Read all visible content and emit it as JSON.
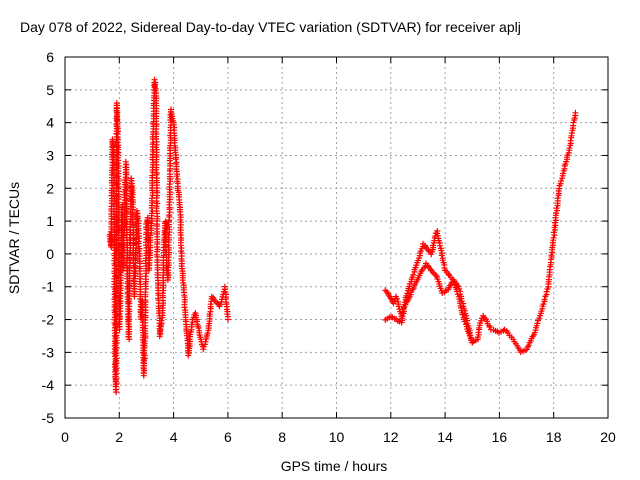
{
  "chart_data": {
    "type": "scatter",
    "title": "Day 078 of 2022, Sidereal Day-to-day VTEC variation (SDTVAR) for receiver aplj",
    "xlabel": "GPS time / hours",
    "ylabel": "SDTVAR / TECUs",
    "xlim": [
      0,
      20
    ],
    "ylim": [
      -5,
      6
    ],
    "xticks": [
      "0",
      "2",
      "4",
      "6",
      "8",
      "10",
      "12",
      "14",
      "16",
      "18",
      "20"
    ],
    "yticks": [
      "-5",
      "-4",
      "-3",
      "-2",
      "-1",
      "0",
      "1",
      "2",
      "3",
      "4",
      "5",
      "6"
    ],
    "grid": true,
    "marker": "+",
    "series": [
      {
        "name": "SDTVAR",
        "color": "#ff0000",
        "segments": [
          [
            [
              1.65,
              0.6
            ],
            [
              1.7,
              0.2
            ],
            [
              1.75,
              3.5
            ],
            [
              1.8,
              3.1
            ],
            [
              1.85,
              -3.6
            ],
            [
              1.88,
              -4.2
            ],
            [
              1.9,
              4.6
            ],
            [
              1.95,
              3.8
            ],
            [
              2.0,
              -2.3
            ],
            [
              2.05,
              -1.2
            ],
            [
              2.1,
              1.5
            ],
            [
              2.15,
              -0.5
            ],
            [
              2.2,
              1.8
            ],
            [
              2.25,
              2.8
            ],
            [
              2.3,
              -1.0
            ],
            [
              2.35,
              -2.6
            ],
            [
              2.4,
              0.5
            ],
            [
              2.45,
              2.3
            ],
            [
              2.5,
              1.5
            ],
            [
              2.55,
              -1.3
            ],
            [
              2.6,
              -0.2
            ],
            [
              2.65,
              1.3
            ],
            [
              2.7,
              1.0
            ],
            [
              2.75,
              -0.3
            ],
            [
              2.8,
              -2.0
            ],
            [
              2.85,
              -1.4
            ],
            [
              2.9,
              -3.7
            ],
            [
              2.95,
              -2.5
            ],
            [
              3.0,
              0.9
            ],
            [
              3.05,
              1.1
            ],
            [
              3.1,
              -0.5
            ],
            [
              3.15,
              0.5
            ],
            [
              3.2,
              1.0
            ],
            [
              3.25,
              3.8
            ],
            [
              3.3,
              5.3
            ],
            [
              3.35,
              4.9
            ],
            [
              3.4,
              -0.1
            ],
            [
              3.45,
              -1.5
            ],
            [
              3.5,
              -2.5
            ],
            [
              3.55,
              -2.1
            ],
            [
              3.6,
              -1.8
            ],
            [
              3.65,
              0.5
            ],
            [
              3.7,
              1.0
            ],
            [
              3.75,
              -0.5
            ],
            [
              3.8,
              -0.8
            ],
            [
              3.85,
              1.5
            ],
            [
              3.9,
              4.4
            ],
            [
              3.95,
              4.2
            ],
            [
              4.0,
              4.0
            ],
            [
              4.05,
              3.3
            ],
            [
              4.1,
              2.8
            ],
            [
              4.15,
              2.0
            ],
            [
              4.2,
              1.8
            ],
            [
              4.25,
              1.2
            ],
            [
              4.3,
              -0.3
            ],
            [
              4.35,
              -0.8
            ],
            [
              4.4,
              -1.4
            ],
            [
              4.45,
              -2.0
            ],
            [
              4.5,
              -2.5
            ],
            [
              4.55,
              -3.1
            ],
            [
              4.6,
              -2.6
            ],
            [
              4.7,
              -2.0
            ],
            [
              4.8,
              -1.8
            ],
            [
              4.9,
              -2.2
            ],
            [
              5.0,
              -2.6
            ],
            [
              5.1,
              -2.9
            ],
            [
              5.2,
              -2.6
            ],
            [
              5.3,
              -2.2
            ],
            [
              5.4,
              -1.3
            ],
            [
              5.5,
              -1.4
            ],
            [
              5.6,
              -1.5
            ],
            [
              5.7,
              -1.6
            ],
            [
              5.8,
              -1.3
            ],
            [
              5.9,
              -1.0
            ],
            [
              6.0,
              -2.0
            ]
          ],
          [
            [
              11.8,
              -1.1
            ],
            [
              11.9,
              -1.2
            ],
            [
              12.0,
              -1.35
            ],
            [
              12.1,
              -1.5
            ],
            [
              12.2,
              -1.3
            ],
            [
              12.4,
              -1.9
            ],
            [
              12.6,
              -1.2
            ],
            [
              12.8,
              -0.7
            ],
            [
              13.0,
              -0.2
            ],
            [
              13.2,
              0.3
            ],
            [
              13.4,
              0.1
            ],
            [
              13.5,
              0.0
            ],
            [
              13.6,
              0.4
            ],
            [
              13.7,
              0.7
            ],
            [
              14.0,
              -0.5
            ],
            [
              14.5,
              -1.0
            ],
            [
              15.0,
              -2.7
            ],
            [
              15.2,
              -2.6
            ],
            [
              15.3,
              -2.1
            ],
            [
              15.4,
              -1.9
            ],
            [
              15.5,
              -2.0
            ],
            [
              15.7,
              -2.3
            ],
            [
              16.0,
              -2.4
            ],
            [
              16.2,
              -2.3
            ],
            [
              16.5,
              -2.6
            ],
            [
              16.8,
              -3.0
            ],
            [
              17.0,
              -2.9
            ],
            [
              17.3,
              -2.4
            ],
            [
              17.6,
              -1.6
            ],
            [
              17.8,
              -1.0
            ],
            [
              18.0,
              0.5
            ],
            [
              18.2,
              2.0
            ],
            [
              18.4,
              2.6
            ],
            [
              18.6,
              3.3
            ],
            [
              18.8,
              4.3
            ]
          ],
          [
            [
              11.8,
              -2.0
            ],
            [
              12.0,
              -1.9
            ],
            [
              12.2,
              -2.0
            ],
            [
              12.4,
              -2.1
            ],
            [
              12.5,
              -1.6
            ],
            [
              12.7,
              -1.3
            ],
            [
              12.9,
              -0.9
            ],
            [
              13.1,
              -0.6
            ],
            [
              13.3,
              -0.3
            ],
            [
              13.5,
              -0.5
            ],
            [
              13.7,
              -0.7
            ],
            [
              13.9,
              -1.2
            ],
            [
              14.1,
              -1.1
            ],
            [
              14.3,
              -0.8
            ],
            [
              14.5,
              -1.3
            ],
            [
              14.7,
              -2.0
            ],
            [
              14.9,
              -2.5
            ],
            [
              15.0,
              -2.7
            ]
          ]
        ]
      }
    ]
  }
}
